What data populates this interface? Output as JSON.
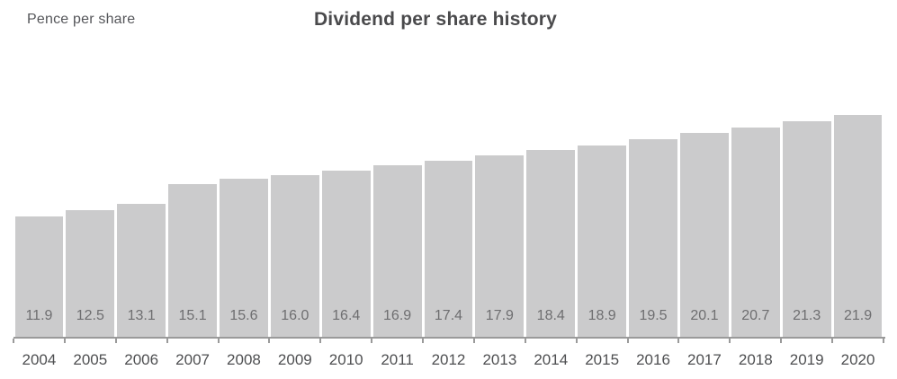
{
  "header": {
    "unit_label": "Pence per share",
    "title": "Dividend per share history"
  },
  "chart_data": {
    "type": "bar",
    "title": "Dividend per share history",
    "ylabel": "Pence per share",
    "xlabel": "",
    "categories": [
      "2004",
      "2005",
      "2006",
      "2007",
      "2008",
      "2009",
      "2010",
      "2011",
      "2012",
      "2013",
      "2014",
      "2015",
      "2016",
      "2017",
      "2018",
      "2019",
      "2020"
    ],
    "values": [
      11.9,
      12.5,
      13.1,
      15.1,
      15.6,
      16.0,
      16.4,
      16.9,
      17.4,
      17.9,
      18.4,
      18.9,
      19.5,
      20.1,
      20.7,
      21.3,
      21.9
    ],
    "value_labels": [
      "11.9",
      "12.5",
      "13.1",
      "15.1",
      "15.6",
      "16.0",
      "16.4",
      "16.9",
      "17.4",
      "17.9",
      "18.4",
      "18.9",
      "19.5",
      "20.1",
      "20.7",
      "21.3",
      "21.9"
    ],
    "ylim": [
      0,
      22
    ],
    "grid": false,
    "legend": false,
    "value_label_position": "inside-bottom",
    "bar_color": "#cbcbcc",
    "axis_color": "#9a9a9a",
    "value_label_color": "#6e6e70",
    "category_label_color": "#4e4f51"
  }
}
